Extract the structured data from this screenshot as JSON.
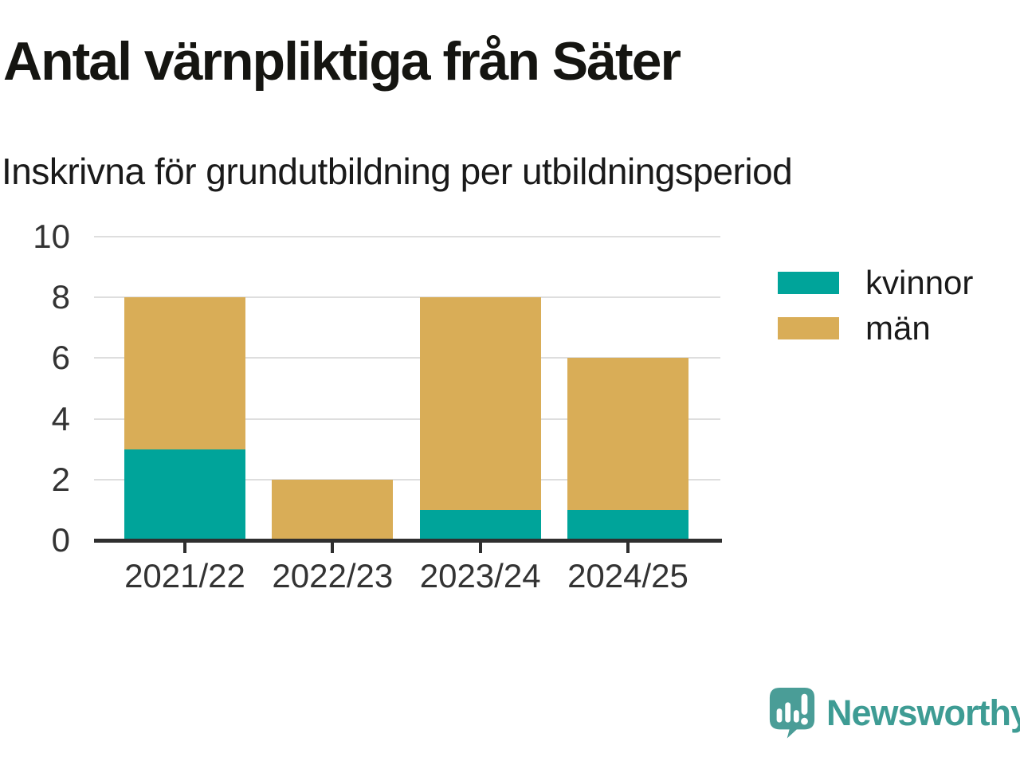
{
  "chart_data": {
    "type": "bar",
    "stacked": true,
    "title": "Antal värnpliktiga från Säter",
    "subtitle": "Inskrivna för grundutbildning per utbildningsperiod",
    "categories": [
      "2021/22",
      "2022/23",
      "2023/24",
      "2024/25"
    ],
    "series": [
      {
        "name": "kvinnor",
        "color": "#00A49A",
        "values": [
          3,
          0,
          1,
          1
        ]
      },
      {
        "name": "män",
        "color": "#D9AD57",
        "values": [
          5,
          2,
          7,
          5
        ]
      }
    ],
    "totals": [
      8,
      2,
      8,
      6
    ],
    "xlabel": "",
    "ylabel": "",
    "ylim": [
      0,
      10
    ],
    "yticks": [
      0,
      2,
      4,
      6,
      8,
      10
    ],
    "grid": true,
    "legend_position": "right"
  },
  "branding": {
    "wordmark": "Newsworthy",
    "logo_color": "#4A9D97",
    "wordmark_color": "#3E9C94"
  },
  "colors": {
    "axis": "#2F2F2F",
    "gridline": "#DEDEDE",
    "title_text": "#151511",
    "tick_text": "#333333"
  }
}
